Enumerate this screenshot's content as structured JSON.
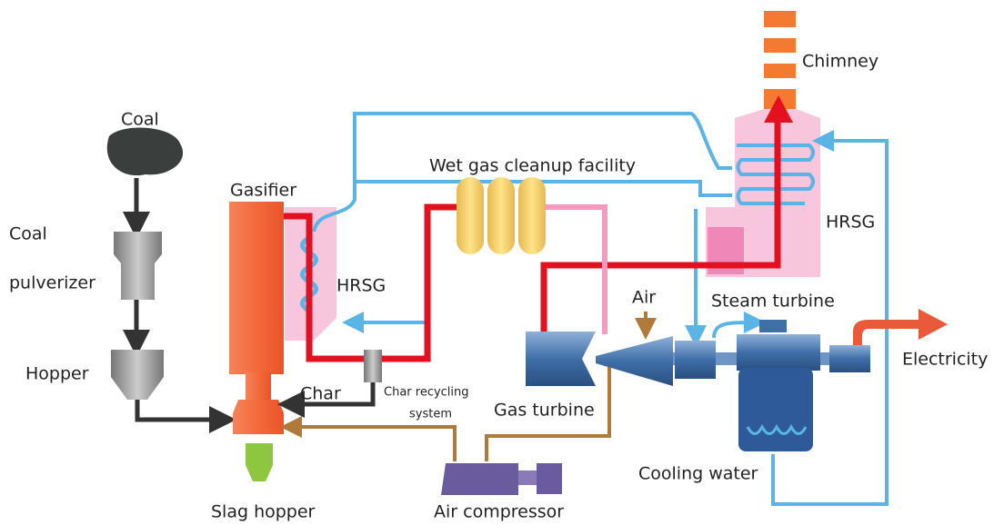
{
  "labels": {
    "coal": "Coal",
    "coal_pulverizer": [
      "Coal",
      "pulverizer"
    ],
    "hopper": "Hopper",
    "gasifier": "Gasifier",
    "hrsg_left": "HRSG",
    "char": "Char",
    "char_recycling": [
      "Char recycling",
      "system"
    ],
    "slag_hopper": "Slag hopper",
    "wet_gas": "Wet gas cleanup facility",
    "air": "Air",
    "gas_turbine": "Gas turbine",
    "air_compressor": "Air compressor",
    "steam_turbine": "Steam turbine",
    "chimney": "Chimney",
    "hrsg_right": "HRSG",
    "electricity": "Electricity",
    "cooling_water": "Cooling water"
  }
}
